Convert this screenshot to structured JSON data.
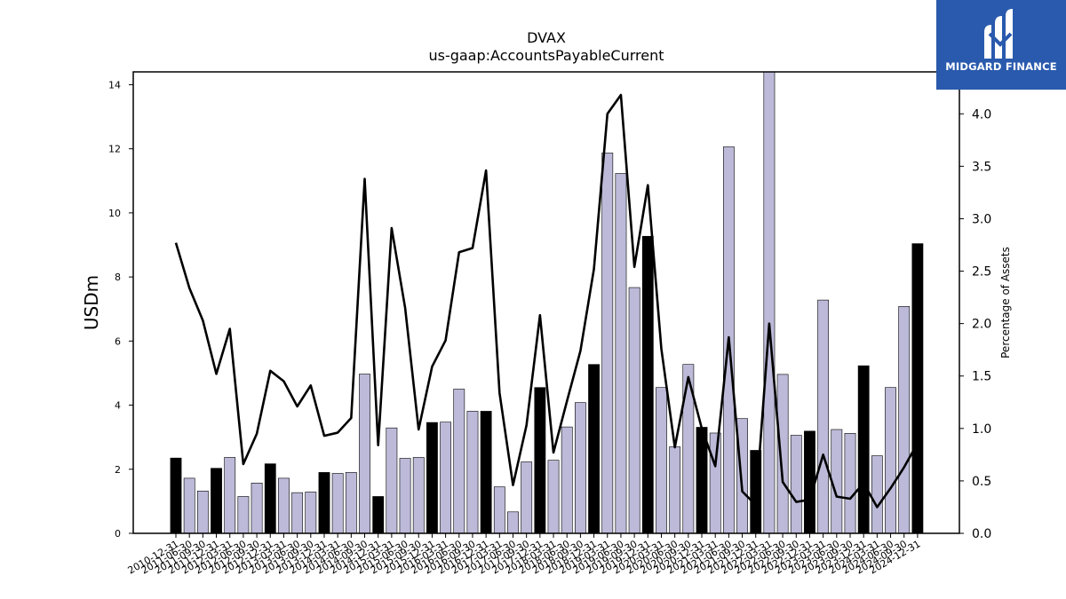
{
  "chart_data": {
    "type": "bar+line",
    "title": "DVAX",
    "subtitle": "us-gaap:AccountsPayableCurrent",
    "ylabel_left": "USDm",
    "ylabel_right": "Percentage of Assets",
    "ylim_left": [
      0,
      14.4
    ],
    "ylim_right": [
      0,
      4.4
    ],
    "yticks_left": [
      "0",
      "2",
      "4",
      "6",
      "8",
      "10",
      "12",
      "14"
    ],
    "yticks_right": [
      "0.0",
      "0.5",
      "1.0",
      "1.5",
      "2.0",
      "2.5",
      "3.0",
      "3.5",
      "4.0"
    ],
    "categories": [
      "2010-12-31",
      "2011-06-30",
      "2011-09-30",
      "2011-12-31",
      "2012-03-31",
      "2012-06-30",
      "2012-09-30",
      "2012-12-31",
      "2013-03-31",
      "2013-06-30",
      "2013-09-30",
      "2013-12-31",
      "2014-03-31",
      "2014-06-30",
      "2014-09-30",
      "2014-12-31",
      "2015-03-31",
      "2015-06-30",
      "2015-09-30",
      "2015-12-31",
      "2016-03-31",
      "2016-06-30",
      "2016-09-30",
      "2016-12-31",
      "2017-03-31",
      "2017-06-30",
      "2017-09-30",
      "2017-12-31",
      "2018-03-31",
      "2018-06-30",
      "2018-09-30",
      "2018-12-31",
      "2019-03-31",
      "2019-06-30",
      "2019-09-30",
      "2019-12-31",
      "2020-03-31",
      "2020-06-30",
      "2020-09-30",
      "2020-12-31",
      "2021-03-31",
      "2021-06-30",
      "2021-09-30",
      "2021-12-31",
      "2022-03-31",
      "2022-06-30",
      "2022-09-30",
      "2022-12-31",
      "2023-03-31",
      "2023-06-30",
      "2023-09-30",
      "2023-12-31",
      "2024-03-31",
      "2024-06-30",
      "2024-09-30",
      "2024-12-31"
    ],
    "bars": [
      2.35,
      1.72,
      1.32,
      2.03,
      2.37,
      1.15,
      1.57,
      2.17,
      1.72,
      1.27,
      1.29,
      1.9,
      1.87,
      1.9,
      4.97,
      1.15,
      3.29,
      2.34,
      2.37,
      3.46,
      3.47,
      4.5,
      3.81,
      3.81,
      1.45,
      0.67,
      2.23,
      4.55,
      2.28,
      3.32,
      4.08,
      5.27,
      11.87,
      11.23,
      7.67,
      9.27,
      4.55,
      2.7,
      5.27,
      3.31,
      3.13,
      12.06,
      3.58,
      2.59,
      14.4,
      4.96,
      3.06,
      3.19,
      7.28,
      3.24,
      3.12,
      5.23,
      2.42,
      4.55,
      7.08,
      9.04
    ],
    "bar_highlight": [
      true,
      false,
      false,
      true,
      false,
      false,
      false,
      true,
      false,
      false,
      false,
      true,
      false,
      false,
      false,
      true,
      false,
      false,
      false,
      true,
      false,
      false,
      false,
      true,
      false,
      false,
      false,
      true,
      false,
      false,
      false,
      true,
      false,
      false,
      false,
      true,
      false,
      false,
      false,
      true,
      false,
      false,
      false,
      true,
      false,
      false,
      false,
      true,
      false,
      false,
      false,
      true,
      false,
      false,
      false,
      true
    ],
    "line_pct": [
      2.77,
      2.34,
      2.03,
      1.52,
      1.95,
      0.66,
      0.95,
      1.55,
      1.45,
      1.21,
      1.41,
      0.93,
      0.96,
      1.1,
      3.38,
      0.84,
      2.91,
      2.15,
      0.99,
      1.59,
      1.84,
      2.68,
      2.72,
      3.46,
      1.34,
      0.46,
      1.03,
      2.08,
      0.77,
      1.26,
      1.74,
      2.52,
      4.0,
      4.18,
      2.54,
      3.32,
      1.76,
      0.82,
      1.49,
      1.0,
      0.64,
      1.87,
      0.4,
      0.27,
      2.0,
      0.49,
      0.3,
      0.32,
      0.75,
      0.35,
      0.33,
      0.48,
      0.25,
      0.43,
      0.63,
      0.86
    ],
    "colors": {
      "bar": "#bcbad8",
      "bar_highlight": "#000000",
      "line": "#000000"
    }
  },
  "logo": {
    "text": "MIDGARD FINANCE"
  }
}
